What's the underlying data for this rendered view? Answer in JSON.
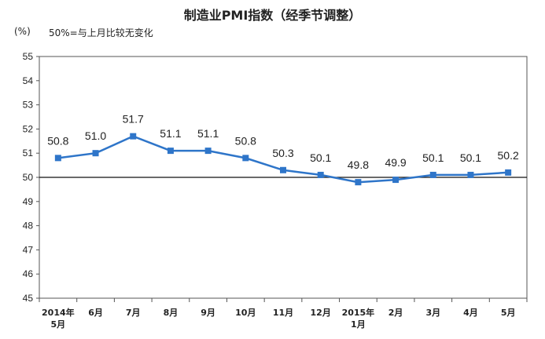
{
  "chart_data": {
    "type": "line",
    "title": "制造业PMI指数（经季节调整）",
    "unit": "(%)",
    "annotation": "50%=与上月比较无变化",
    "categories": [
      [
        "2014年",
        "5月"
      ],
      [
        "6月"
      ],
      [
        "7月"
      ],
      [
        "8月"
      ],
      [
        "9月"
      ],
      [
        "10月"
      ],
      [
        "11月"
      ],
      [
        "12月"
      ],
      [
        "2015年",
        "1月"
      ],
      [
        "2月"
      ],
      [
        "3月"
      ],
      [
        "4月"
      ],
      [
        "5月"
      ]
    ],
    "series": [
      {
        "values": [
          50.8,
          51.0,
          51.7,
          51.1,
          51.1,
          50.8,
          50.3,
          50.1,
          49.8,
          49.9,
          50.1,
          50.1,
          50.2
        ]
      }
    ],
    "data_labels": [
      "50.8",
      "51.0",
      "51.7",
      "51.1",
      "51.1",
      "50.8",
      "50.3",
      "50.1",
      "49.8",
      "49.9",
      "50.1",
      "50.1",
      "50.2"
    ],
    "yticks": [
      45,
      46,
      47,
      48,
      49,
      50,
      51,
      52,
      53,
      54,
      55
    ],
    "ylim": [
      45,
      55
    ],
    "reference_line": 50,
    "line_color": "#2e75c9",
    "grid": false
  }
}
